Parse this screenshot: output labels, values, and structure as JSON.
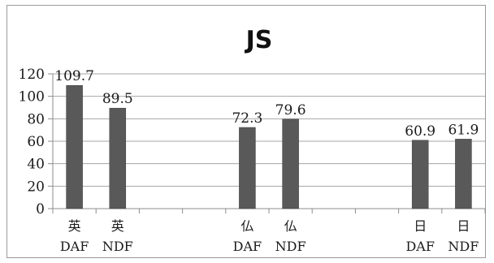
{
  "chart_data": {
    "type": "bar",
    "title": "JS",
    "xlabel": "",
    "ylabel": "",
    "ylim": [
      0,
      120
    ],
    "yticks": [
      0,
      20,
      40,
      60,
      80,
      100,
      120
    ],
    "grid": true,
    "legend": "none",
    "bar_color": "#595959",
    "categories": [
      {
        "line1": "英",
        "line2": "DAF"
      },
      {
        "line1": "英",
        "line2": "NDF"
      },
      {
        "line1": "",
        "line2": ""
      },
      {
        "line1": "",
        "line2": ""
      },
      {
        "line1": "仏",
        "line2": "DAF"
      },
      {
        "line1": "仏",
        "line2": "NDF"
      },
      {
        "line1": "",
        "line2": ""
      },
      {
        "line1": "",
        "line2": ""
      },
      {
        "line1": "日",
        "line2": "DAF"
      },
      {
        "line1": "日",
        "line2": "NDF"
      }
    ],
    "values": [
      109.7,
      89.5,
      null,
      null,
      72.3,
      79.6,
      null,
      null,
      60.9,
      61.9
    ],
    "data_labels": [
      "109.7",
      "89.5",
      "",
      "",
      "72.3",
      "79.6",
      "",
      "",
      "60.9",
      "61.9"
    ]
  }
}
